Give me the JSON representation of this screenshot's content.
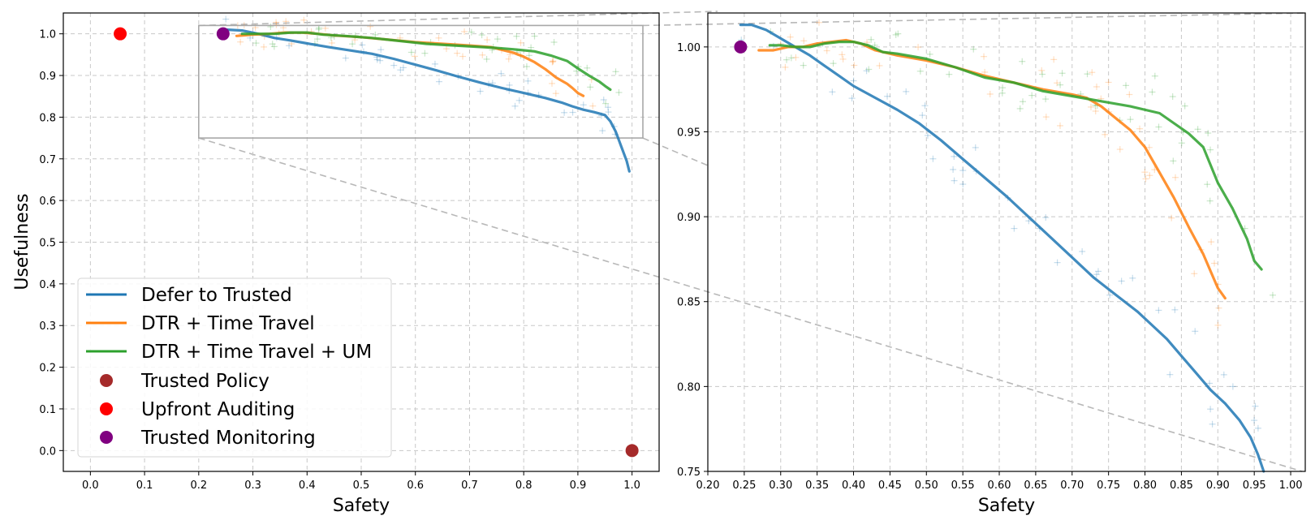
{
  "chart_data": [
    {
      "type": "line",
      "xlabel": "Safety",
      "ylabel": "Usefulness",
      "xlim": [
        -0.05,
        1.05
      ],
      "ylim": [
        -0.05,
        1.05
      ],
      "xticks": [
        "0.0",
        "0.1",
        "0.2",
        "0.3",
        "0.4",
        "0.5",
        "0.6",
        "0.7",
        "0.8",
        "0.9",
        "1.0"
      ],
      "yticks": [
        "0.0",
        "0.1",
        "0.2",
        "0.3",
        "0.4",
        "0.5",
        "0.6",
        "0.7",
        "0.8",
        "0.9",
        "1.0"
      ],
      "grid": true,
      "legend_position": "lower-left",
      "zoom_box": {
        "x": [
          0.2,
          1.02
        ],
        "y": [
          0.75,
          1.02
        ]
      },
      "series": [
        {
          "name": "Defer to Trusted",
          "color": "#1f77b4",
          "x": [
            0.25,
            0.28,
            0.31,
            0.34,
            0.37,
            0.4,
            0.44,
            0.48,
            0.52,
            0.56,
            0.6,
            0.64,
            0.68,
            0.72,
            0.76,
            0.8,
            0.84,
            0.87,
            0.89,
            0.91,
            0.93,
            0.95,
            0.96,
            0.97,
            0.98,
            0.99,
            0.995
          ],
          "y": [
            1.01,
            1.008,
            1.0,
            0.99,
            0.984,
            0.977,
            0.968,
            0.96,
            0.952,
            0.94,
            0.926,
            0.912,
            0.897,
            0.883,
            0.87,
            0.858,
            0.846,
            0.835,
            0.826,
            0.818,
            0.812,
            0.805,
            0.79,
            0.765,
            0.73,
            0.695,
            0.67
          ]
        },
        {
          "name": "DTR + Time Travel",
          "color": "#ff7f0e",
          "x": [
            0.27,
            0.3,
            0.33,
            0.36,
            0.39,
            0.42,
            0.45,
            0.5,
            0.55,
            0.6,
            0.65,
            0.7,
            0.74,
            0.78,
            0.8,
            0.82,
            0.84,
            0.86,
            0.88,
            0.89,
            0.9,
            0.91
          ],
          "y": [
            0.995,
            0.998,
            1.0,
            1.003,
            1.003,
            1.0,
            0.996,
            0.992,
            0.986,
            0.98,
            0.976,
            0.972,
            0.968,
            0.955,
            0.945,
            0.932,
            0.915,
            0.895,
            0.88,
            0.87,
            0.858,
            0.851
          ]
        },
        {
          "name": "DTR + Time Travel + UM",
          "color": "#2ca02c",
          "x": [
            0.28,
            0.31,
            0.34,
            0.37,
            0.4,
            0.43,
            0.47,
            0.52,
            0.57,
            0.62,
            0.66,
            0.7,
            0.74,
            0.78,
            0.82,
            0.85,
            0.88,
            0.9,
            0.92,
            0.94,
            0.95,
            0.96
          ],
          "y": [
            1.0,
            1.0,
            1.0,
            1.003,
            1.003,
            0.998,
            0.995,
            0.99,
            0.983,
            0.976,
            0.973,
            0.97,
            0.967,
            0.963,
            0.958,
            0.948,
            0.935,
            0.917,
            0.9,
            0.885,
            0.875,
            0.866
          ]
        },
        {
          "name": "Trusted Policy",
          "type": "scatter",
          "color": "#a52a2a",
          "x": [
            1.0
          ],
          "y": [
            0.0
          ]
        },
        {
          "name": "Upfront Auditing",
          "type": "scatter",
          "color": "#ff0000",
          "x": [
            0.055
          ],
          "y": [
            1.0
          ]
        },
        {
          "name": "Trusted Monitoring",
          "type": "scatter",
          "color": "#800080",
          "x": [
            0.245
          ],
          "y": [
            1.0
          ]
        }
      ]
    },
    {
      "type": "line",
      "xlabel": "Safety",
      "ylabel": "",
      "xlim": [
        0.2,
        1.02
      ],
      "ylim": [
        0.75,
        1.02
      ],
      "xticks": [
        "0.20",
        "0.25",
        "0.30",
        "0.35",
        "0.40",
        "0.45",
        "0.50",
        "0.55",
        "0.60",
        "0.65",
        "0.70",
        "0.75",
        "0.80",
        "0.85",
        "0.90",
        "0.95",
        "1.00"
      ],
      "yticks": [
        "0.75",
        "0.80",
        "0.85",
        "0.90",
        "0.95",
        "1.00"
      ],
      "grid": true,
      "series": [
        {
          "name": "Defer to Trusted",
          "color": "#1f77b4",
          "x": [
            0.245,
            0.26,
            0.28,
            0.3,
            0.32,
            0.34,
            0.36,
            0.38,
            0.4,
            0.43,
            0.46,
            0.49,
            0.52,
            0.55,
            0.58,
            0.61,
            0.64,
            0.67,
            0.7,
            0.73,
            0.76,
            0.79,
            0.81,
            0.83,
            0.85,
            0.87,
            0.89,
            0.91,
            0.93,
            0.945,
            0.955,
            0.963
          ],
          "y": [
            1.013,
            1.013,
            1.01,
            1.005,
            1.0,
            0.995,
            0.989,
            0.983,
            0.977,
            0.97,
            0.963,
            0.955,
            0.945,
            0.934,
            0.923,
            0.912,
            0.9,
            0.888,
            0.876,
            0.864,
            0.854,
            0.844,
            0.836,
            0.828,
            0.818,
            0.808,
            0.798,
            0.79,
            0.78,
            0.77,
            0.76,
            0.75
          ]
        },
        {
          "name": "DTR + Time Travel",
          "color": "#ff7f0e",
          "x": [
            0.27,
            0.29,
            0.31,
            0.33,
            0.35,
            0.37,
            0.39,
            0.41,
            0.43,
            0.46,
            0.5,
            0.54,
            0.58,
            0.62,
            0.66,
            0.7,
            0.72,
            0.74,
            0.76,
            0.78,
            0.8,
            0.82,
            0.84,
            0.86,
            0.88,
            0.89,
            0.9,
            0.91
          ],
          "y": [
            0.998,
            0.998,
            1.0,
            1.0,
            1.002,
            1.003,
            1.004,
            1.002,
            0.998,
            0.995,
            0.992,
            0.988,
            0.983,
            0.979,
            0.975,
            0.972,
            0.97,
            0.965,
            0.958,
            0.951,
            0.941,
            0.926,
            0.911,
            0.894,
            0.878,
            0.868,
            0.858,
            0.852
          ]
        },
        {
          "name": "DTR + Time Travel + UM",
          "color": "#2ca02c",
          "x": [
            0.285,
            0.3,
            0.32,
            0.34,
            0.36,
            0.38,
            0.4,
            0.42,
            0.44,
            0.46,
            0.5,
            0.54,
            0.58,
            0.62,
            0.66,
            0.7,
            0.74,
            0.78,
            0.82,
            0.84,
            0.86,
            0.88,
            0.9,
            0.92,
            0.94,
            0.95,
            0.96
          ],
          "y": [
            1.001,
            1.001,
            1.0,
            1.0,
            1.002,
            1.003,
            1.003,
            1.001,
            0.997,
            0.996,
            0.993,
            0.988,
            0.982,
            0.979,
            0.974,
            0.971,
            0.968,
            0.965,
            0.961,
            0.955,
            0.949,
            0.941,
            0.92,
            0.905,
            0.887,
            0.874,
            0.869
          ]
        },
        {
          "name": "Trusted Monitoring",
          "type": "scatter",
          "color": "#800080",
          "x": [
            0.245
          ],
          "y": [
            1.0
          ]
        }
      ]
    }
  ]
}
